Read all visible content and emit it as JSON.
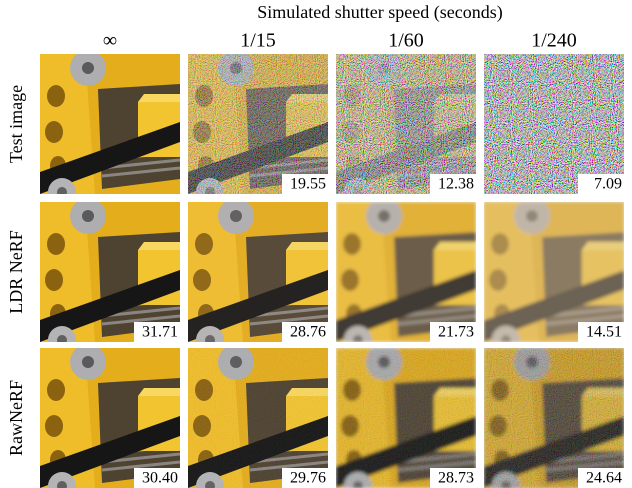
{
  "title": "Simulated shutter speed (seconds)",
  "columns": [
    "∞",
    "1/15",
    "1/60",
    "1/240"
  ],
  "rows": [
    {
      "label": "Test image",
      "scores": [
        null,
        "19.55",
        "12.38",
        "7.09"
      ]
    },
    {
      "label": "LDR NeRF",
      "scores": [
        "31.71",
        "28.76",
        "21.73",
        "14.51"
      ]
    },
    {
      "label": "RawNeRF",
      "scores": [
        "30.40",
        "29.76",
        "28.73",
        "24.64"
      ]
    }
  ]
}
